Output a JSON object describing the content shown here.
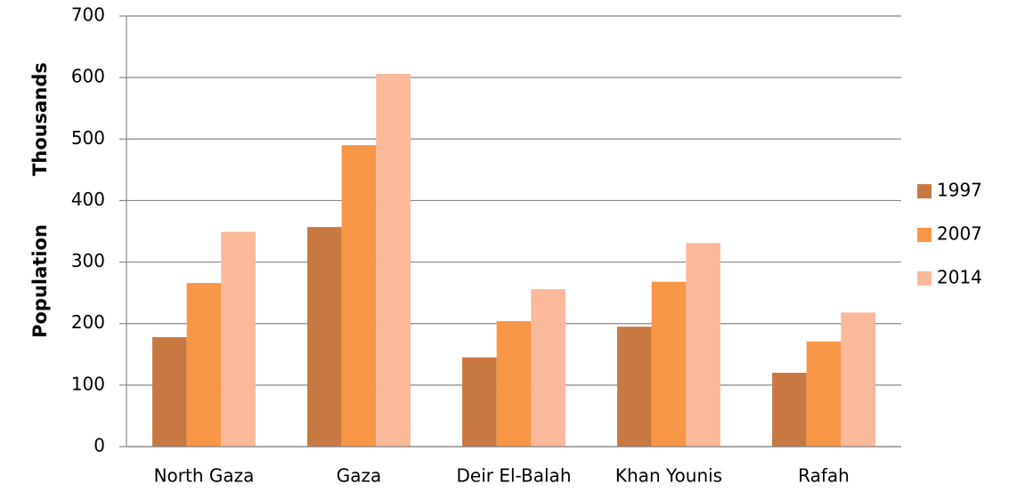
{
  "chart_data": {
    "type": "bar",
    "ylabel": "Population",
    "units": "Thousands",
    "categories": [
      "North Gaza",
      "Gaza",
      "Deir El-Balah",
      "Khan Younis",
      "Rafah"
    ],
    "series": [
      {
        "name": "1997",
        "color": "#c87941",
        "values": [
          178,
          357,
          145,
          195,
          120
        ]
      },
      {
        "name": "2007",
        "color": "#f79646",
        "values": [
          266,
          490,
          204,
          268,
          171
        ]
      },
      {
        "name": "2014",
        "color": "#fab99a",
        "values": [
          349,
          606,
          256,
          331,
          218
        ]
      }
    ],
    "ylim": [
      0,
      700
    ],
    "yticks": [
      0,
      100,
      200,
      300,
      400,
      500,
      600,
      700
    ],
    "grid": true,
    "legend": "right"
  }
}
